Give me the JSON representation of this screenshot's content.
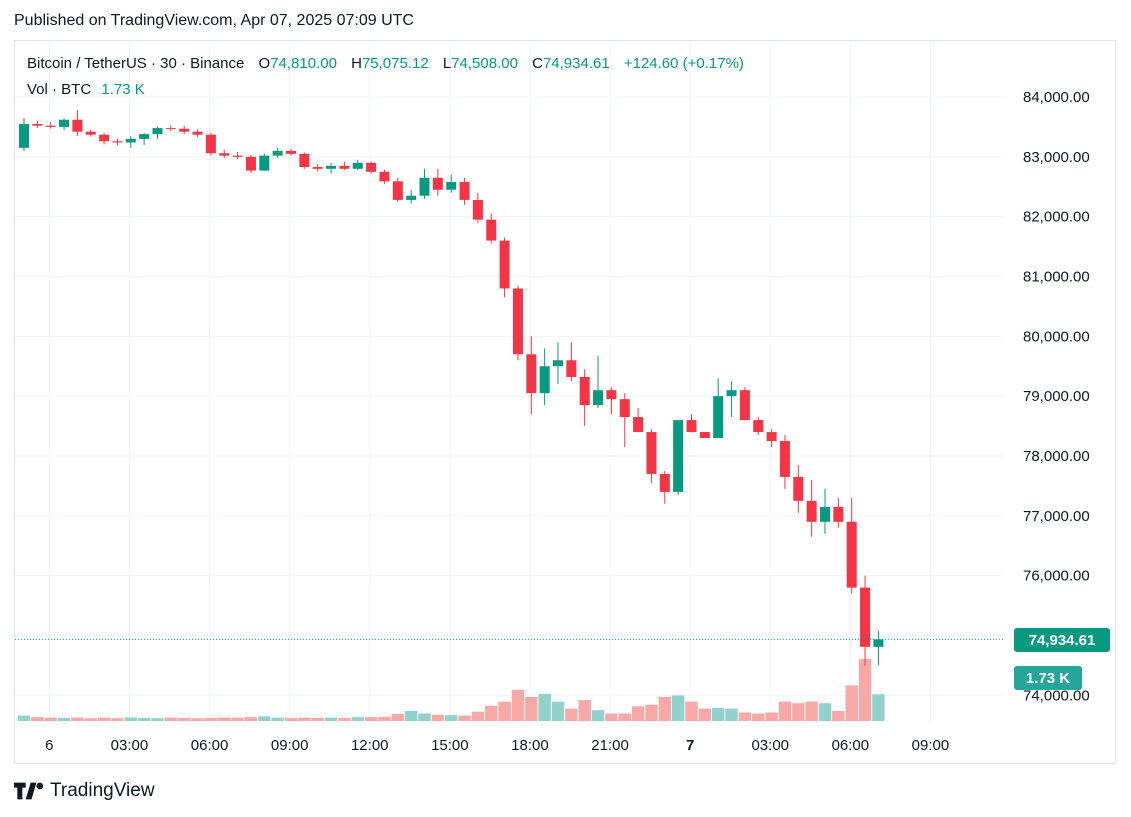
{
  "header": {
    "published": "Published on TradingView.com, Apr 07, 2025 07:09 UTC"
  },
  "legend": {
    "symbol": "Bitcoin / TetherUS · 30 · Binance",
    "o_label": "O",
    "o_value": "74,810.00",
    "h_label": "H",
    "h_value": "75,075.12",
    "l_label": "L",
    "l_value": "74,508.00",
    "c_label": "C",
    "c_value": "74,934.61",
    "change": "+124.60 (+0.17%)",
    "vol_label": "Vol · BTC",
    "vol_value": "1.73 K"
  },
  "price_tag": {
    "last_price": "74,934.61",
    "last_volume": "1.73 K"
  },
  "footer": {
    "brand": "TradingView"
  },
  "colors": {
    "up": "#089981",
    "down": "#f23645",
    "vol_up": "#92d2cc",
    "vol_down": "#f7a9a7",
    "grid": "#f0f3fa"
  },
  "chart_data": {
    "type": "candlestick",
    "interval_minutes": 30,
    "y_ticks": [
      "84,000.00",
      "83,000.00",
      "82,000.00",
      "81,000.00",
      "80,000.00",
      "79,000.00",
      "78,000.00",
      "77,000.00",
      "76,000.00",
      "74,000.00"
    ],
    "y_tick_values": [
      84000,
      83000,
      82000,
      81000,
      80000,
      79000,
      78000,
      77000,
      76000,
      74000
    ],
    "x_ticks": [
      "6",
      "03:00",
      "06:00",
      "09:00",
      "12:00",
      "15:00",
      "18:00",
      "21:00",
      "7",
      "03:00",
      "06:00",
      "09:00"
    ],
    "x_tick_bar_index": [
      1,
      7,
      13,
      19,
      25,
      31,
      37,
      43,
      49,
      55,
      61,
      67
    ],
    "ylim": [
      73600,
      84800
    ],
    "last_price": 74934.61,
    "candles": [
      {
        "o": 83150,
        "h": 83650,
        "l": 83100,
        "c": 83550,
        "v": 0.35
      },
      {
        "o": 83550,
        "h": 83600,
        "l": 83480,
        "c": 83520,
        "v": 0.25
      },
      {
        "o": 83520,
        "h": 83580,
        "l": 83470,
        "c": 83500,
        "v": 0.22
      },
      {
        "o": 83500,
        "h": 83640,
        "l": 83450,
        "c": 83620,
        "v": 0.2
      },
      {
        "o": 83620,
        "h": 83780,
        "l": 83350,
        "c": 83420,
        "v": 0.23
      },
      {
        "o": 83420,
        "h": 83450,
        "l": 83340,
        "c": 83370,
        "v": 0.18
      },
      {
        "o": 83370,
        "h": 83400,
        "l": 83210,
        "c": 83260,
        "v": 0.22
      },
      {
        "o": 83260,
        "h": 83300,
        "l": 83190,
        "c": 83240,
        "v": 0.18
      },
      {
        "o": 83240,
        "h": 83350,
        "l": 83150,
        "c": 83300,
        "v": 0.23
      },
      {
        "o": 83300,
        "h": 83400,
        "l": 83200,
        "c": 83380,
        "v": 0.2
      },
      {
        "o": 83380,
        "h": 83500,
        "l": 83300,
        "c": 83480,
        "v": 0.18
      },
      {
        "o": 83480,
        "h": 83520,
        "l": 83430,
        "c": 83470,
        "v": 0.22
      },
      {
        "o": 83470,
        "h": 83520,
        "l": 83380,
        "c": 83420,
        "v": 0.2
      },
      {
        "o": 83420,
        "h": 83460,
        "l": 83330,
        "c": 83370,
        "v": 0.18
      },
      {
        "o": 83370,
        "h": 83400,
        "l": 83020,
        "c": 83060,
        "v": 0.2
      },
      {
        "o": 83060,
        "h": 83120,
        "l": 82980,
        "c": 83020,
        "v": 0.22
      },
      {
        "o": 83020,
        "h": 83080,
        "l": 82960,
        "c": 83000,
        "v": 0.22
      },
      {
        "o": 83000,
        "h": 83030,
        "l": 82730,
        "c": 82770,
        "v": 0.25
      },
      {
        "o": 82770,
        "h": 83050,
        "l": 82760,
        "c": 83020,
        "v": 0.3
      },
      {
        "o": 83020,
        "h": 83150,
        "l": 82980,
        "c": 83100,
        "v": 0.22
      },
      {
        "o": 83100,
        "h": 83130,
        "l": 83020,
        "c": 83050,
        "v": 0.2
      },
      {
        "o": 83050,
        "h": 83070,
        "l": 82800,
        "c": 82830,
        "v": 0.22
      },
      {
        "o": 82830,
        "h": 82880,
        "l": 82760,
        "c": 82800,
        "v": 0.2
      },
      {
        "o": 82800,
        "h": 82900,
        "l": 82720,
        "c": 82850,
        "v": 0.22
      },
      {
        "o": 82850,
        "h": 82920,
        "l": 82780,
        "c": 82800,
        "v": 0.2
      },
      {
        "o": 82800,
        "h": 82950,
        "l": 82780,
        "c": 82900,
        "v": 0.25
      },
      {
        "o": 82900,
        "h": 82920,
        "l": 82720,
        "c": 82750,
        "v": 0.25
      },
      {
        "o": 82750,
        "h": 82780,
        "l": 82550,
        "c": 82590,
        "v": 0.28
      },
      {
        "o": 82590,
        "h": 82650,
        "l": 82250,
        "c": 82280,
        "v": 0.45
      },
      {
        "o": 82280,
        "h": 82450,
        "l": 82220,
        "c": 82350,
        "v": 0.65
      },
      {
        "o": 82350,
        "h": 82800,
        "l": 82300,
        "c": 82650,
        "v": 0.48
      },
      {
        "o": 82650,
        "h": 82800,
        "l": 82350,
        "c": 82450,
        "v": 0.4
      },
      {
        "o": 82450,
        "h": 82700,
        "l": 82400,
        "c": 82580,
        "v": 0.38
      },
      {
        "o": 82580,
        "h": 82650,
        "l": 82200,
        "c": 82280,
        "v": 0.35
      },
      {
        "o": 82280,
        "h": 82400,
        "l": 81900,
        "c": 81950,
        "v": 0.6
      },
      {
        "o": 81950,
        "h": 82050,
        "l": 81550,
        "c": 81600,
        "v": 0.98
      },
      {
        "o": 81600,
        "h": 81650,
        "l": 80650,
        "c": 80800,
        "v": 1.25
      },
      {
        "o": 80800,
        "h": 80850,
        "l": 79600,
        "c": 79700,
        "v": 2.0
      },
      {
        "o": 79700,
        "h": 80000,
        "l": 78700,
        "c": 79050,
        "v": 1.55
      },
      {
        "o": 79050,
        "h": 79800,
        "l": 78850,
        "c": 79500,
        "v": 1.75
      },
      {
        "o": 79500,
        "h": 79900,
        "l": 79200,
        "c": 79600,
        "v": 1.25
      },
      {
        "o": 79600,
        "h": 79900,
        "l": 79250,
        "c": 79320,
        "v": 0.8
      },
      {
        "o": 79320,
        "h": 79450,
        "l": 78500,
        "c": 78850,
        "v": 1.35
      },
      {
        "o": 78850,
        "h": 79680,
        "l": 78800,
        "c": 79100,
        "v": 0.7
      },
      {
        "o": 79100,
        "h": 79150,
        "l": 78700,
        "c": 78950,
        "v": 0.48
      },
      {
        "o": 78950,
        "h": 79050,
        "l": 78150,
        "c": 78650,
        "v": 0.48
      },
      {
        "o": 78650,
        "h": 78800,
        "l": 78400,
        "c": 78400,
        "v": 0.95
      },
      {
        "o": 78400,
        "h": 78450,
        "l": 77550,
        "c": 77700,
        "v": 1.05
      },
      {
        "o": 77700,
        "h": 77750,
        "l": 77200,
        "c": 77400,
        "v": 1.55
      },
      {
        "o": 77400,
        "h": 78600,
        "l": 77350,
        "c": 78600,
        "v": 1.65
      },
      {
        "o": 78600,
        "h": 78700,
        "l": 78400,
        "c": 78400,
        "v": 1.25
      },
      {
        "o": 78400,
        "h": 78380,
        "l": 78300,
        "c": 78300,
        "v": 0.8
      },
      {
        "o": 78300,
        "h": 79300,
        "l": 78300,
        "c": 79000,
        "v": 0.85
      },
      {
        "o": 79000,
        "h": 79250,
        "l": 78650,
        "c": 79100,
        "v": 0.8
      },
      {
        "o": 79100,
        "h": 79150,
        "l": 78600,
        "c": 78600,
        "v": 0.55
      },
      {
        "o": 78600,
        "h": 78650,
        "l": 78350,
        "c": 78400,
        "v": 0.48
      },
      {
        "o": 78400,
        "h": 78450,
        "l": 78150,
        "c": 78250,
        "v": 0.55
      },
      {
        "o": 78250,
        "h": 78350,
        "l": 77450,
        "c": 77650,
        "v": 1.25
      },
      {
        "o": 77650,
        "h": 77850,
        "l": 77050,
        "c": 77250,
        "v": 1.15
      },
      {
        "o": 77250,
        "h": 77600,
        "l": 76650,
        "c": 76900,
        "v": 1.25
      },
      {
        "o": 76900,
        "h": 77450,
        "l": 76700,
        "c": 77150,
        "v": 1.15
      },
      {
        "o": 77150,
        "h": 77300,
        "l": 76800,
        "c": 76900,
        "v": 0.65
      },
      {
        "o": 76900,
        "h": 77300,
        "l": 75700,
        "c": 75800,
        "v": 2.3
      },
      {
        "o": 75800,
        "h": 76000,
        "l": 74500,
        "c": 74810,
        "v": 4.0
      },
      {
        "o": 74810,
        "h": 75075.12,
        "l": 74508,
        "c": 74934.61,
        "v": 1.73
      }
    ]
  }
}
